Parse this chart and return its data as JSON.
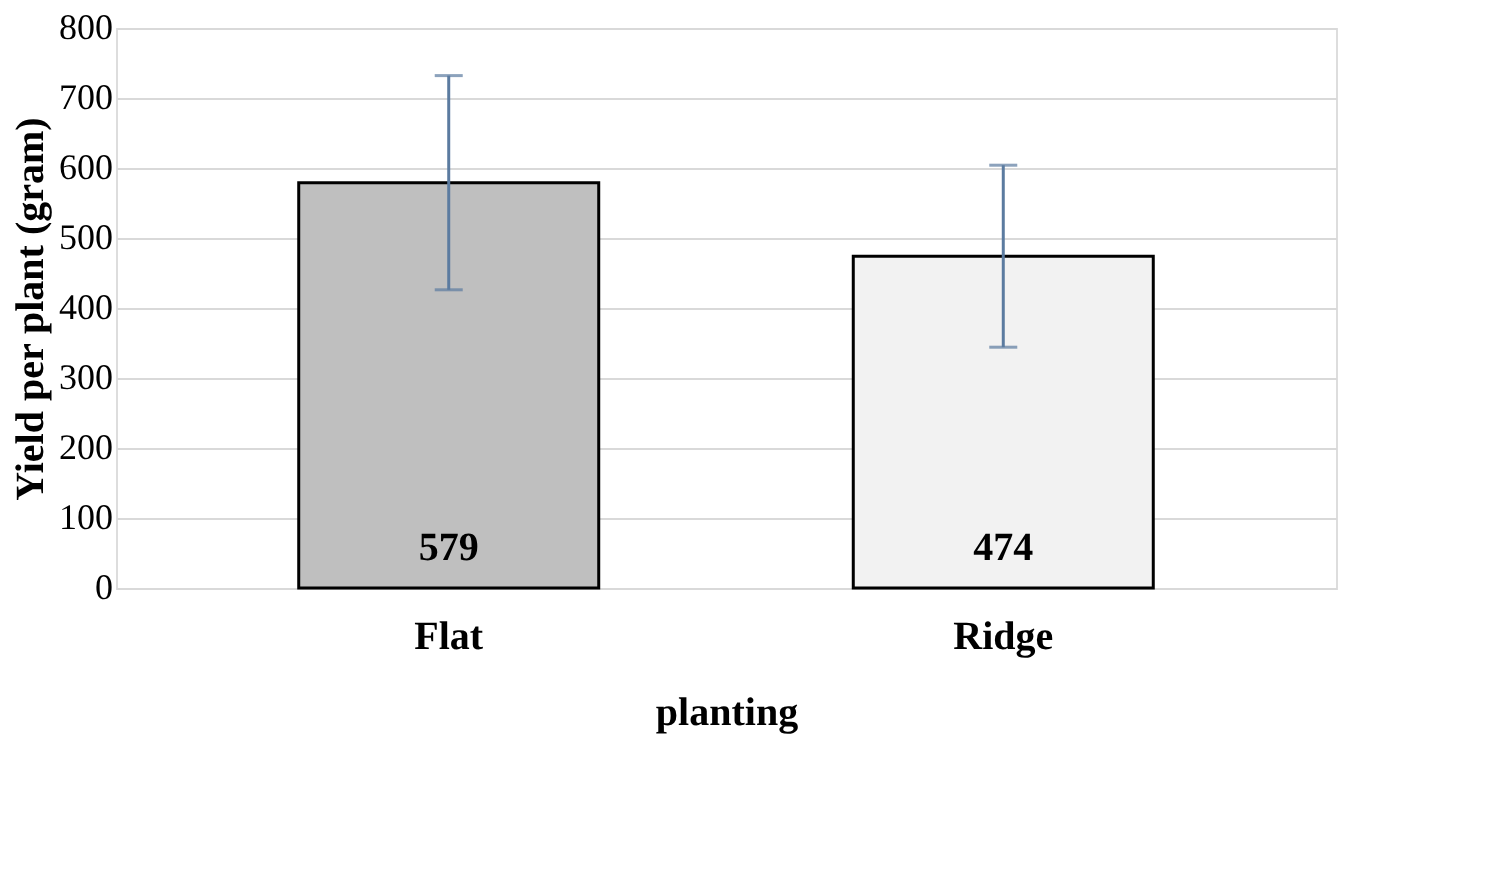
{
  "chart_data": {
    "type": "bar",
    "xlabel": "planting",
    "ylabel": "Yield per plant (gram)",
    "categories": [
      "Flat",
      "Ridge"
    ],
    "values": [
      579,
      474
    ],
    "colors": [
      "#bfbfbf",
      "#f2f2f2"
    ],
    "errors": [
      153,
      130
    ],
    "ylim": [
      0,
      800
    ],
    "yticks": [
      0,
      100,
      200,
      300,
      400,
      500,
      600,
      700,
      800
    ],
    "grid": "y",
    "data_labels": true
  }
}
